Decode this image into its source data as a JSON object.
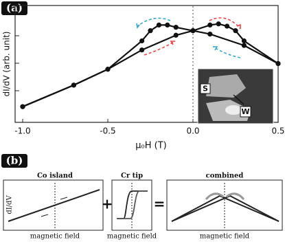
{
  "chart_data": {
    "type": "line",
    "panel_label": "(a)",
    "xlabel": "μ₀H (T)",
    "ylabel": "dI/dV (arb. unit)",
    "xlim": [
      -1.0,
      0.5
    ],
    "xticks": [
      {
        "value": -1,
        "label": "-1.0"
      },
      -0.5,
      {
        "value": 0,
        "label": "0.0"
      },
      0.5
    ],
    "ylim": [
      0,
      1
    ],
    "series": [
      {
        "color": "#111",
        "x": [
          -1.0,
          -0.7,
          -0.5,
          -0.3,
          -0.25,
          -0.2,
          -0.15,
          -0.1,
          0.0,
          0.1,
          0.3,
          0.5
        ],
        "values": [
          0.12,
          0.31,
          0.45,
          0.7,
          0.79,
          0.84,
          0.84,
          0.82,
          0.79,
          0.76,
          0.66,
          0.5
        ]
      },
      {
        "color": "#111",
        "x": [
          -1.0,
          -0.7,
          -0.5,
          -0.3,
          -0.1,
          0.0,
          0.1,
          0.15,
          0.2,
          0.25,
          0.3,
          0.5
        ],
        "values": [
          0.12,
          0.31,
          0.45,
          0.62,
          0.75,
          0.79,
          0.84,
          0.85,
          0.83,
          0.79,
          0.7,
          0.5
        ]
      }
    ],
    "inset_labels": [
      "S",
      "W"
    ]
  },
  "panel_b": {
    "label": "(b)",
    "boxes": [
      {
        "title": "Co island",
        "x_label": "magnetic field",
        "y_label": "dI/dV"
      },
      {
        "title": "Cr tip",
        "x_label": "magnetic field"
      },
      {
        "title": "combined",
        "x_label": "magnetic field"
      }
    ],
    "operators": [
      "+",
      "="
    ]
  }
}
